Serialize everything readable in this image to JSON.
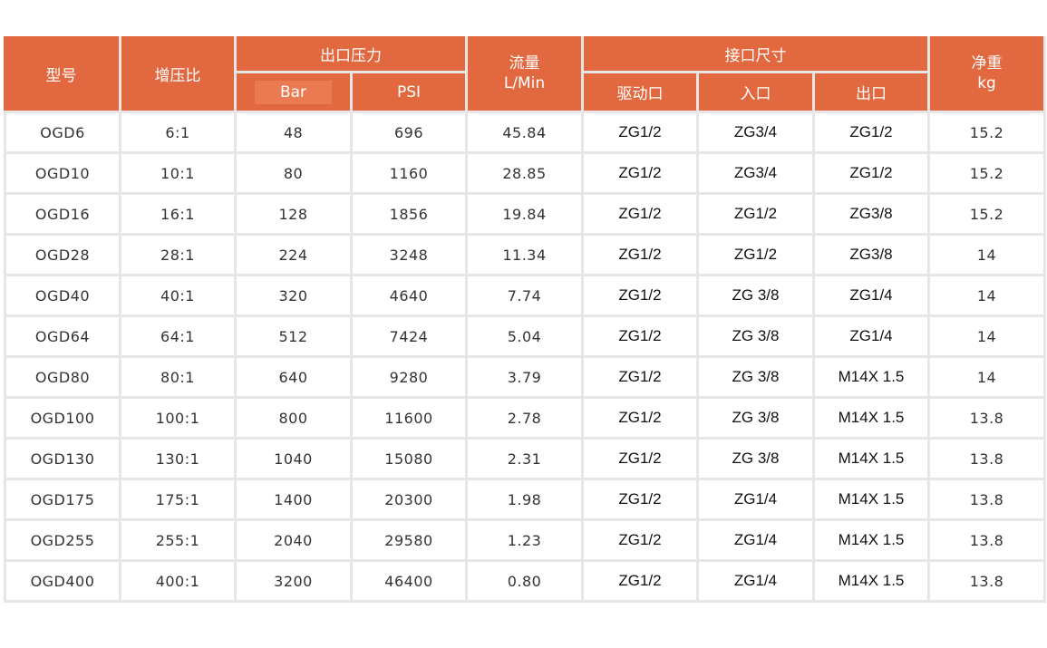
{
  "table": {
    "headers": {
      "model": "型号",
      "ratio": "增压比",
      "outlet_pressure": "出口压力",
      "bar": "Bar",
      "psi": "PSI",
      "flow_line1": "流量",
      "flow_line2": "L/Min",
      "port_size": "接口尺寸",
      "drive_port": "驱动口",
      "inlet": "入口",
      "outlet": "出口",
      "weight_line1": "净重",
      "weight_line2": "kg"
    },
    "rows": [
      {
        "model": "OGD6",
        "ratio": "6:1",
        "bar": "48",
        "psi": "696",
        "flow": "45.84",
        "drive": "ZG1/2",
        "inlet": "ZG3/4",
        "outlet": "ZG1/2",
        "weight": "15.2"
      },
      {
        "model": "OGD10",
        "ratio": "10:1",
        "bar": "80",
        "psi": "1160",
        "flow": "28.85",
        "drive": "ZG1/2",
        "inlet": "ZG3/4",
        "outlet": "ZG1/2",
        "weight": "15.2"
      },
      {
        "model": "OGD16",
        "ratio": "16:1",
        "bar": "128",
        "psi": "1856",
        "flow": "19.84",
        "drive": "ZG1/2",
        "inlet": "ZG1/2",
        "outlet": "ZG3/8",
        "weight": "15.2"
      },
      {
        "model": "OGD28",
        "ratio": "28:1",
        "bar": "224",
        "psi": "3248",
        "flow": "11.34",
        "drive": "ZG1/2",
        "inlet": "ZG1/2",
        "outlet": "ZG3/8",
        "weight": "14"
      },
      {
        "model": "OGD40",
        "ratio": "40:1",
        "bar": "320",
        "psi": "4640",
        "flow": "7.74",
        "drive": "ZG1/2",
        "inlet": "ZG 3/8",
        "outlet": "ZG1/4",
        "weight": "14"
      },
      {
        "model": "OGD64",
        "ratio": "64:1",
        "bar": "512",
        "psi": "7424",
        "flow": "5.04",
        "drive": "ZG1/2",
        "inlet": "ZG 3/8",
        "outlet": "ZG1/4",
        "weight": "14"
      },
      {
        "model": "OGD80",
        "ratio": "80:1",
        "bar": "640",
        "psi": "9280",
        "flow": "3.79",
        "drive": "ZG1/2",
        "inlet": "ZG 3/8",
        "outlet": "M14X 1.5",
        "weight": "14"
      },
      {
        "model": "OGD100",
        "ratio": "100:1",
        "bar": "800",
        "psi": "11600",
        "flow": "2.78",
        "drive": "ZG1/2",
        "inlet": "ZG 3/8",
        "outlet": "M14X 1.5",
        "weight": "13.8"
      },
      {
        "model": "OGD130",
        "ratio": "130:1",
        "bar": "1040",
        "psi": "15080",
        "flow": "2.31",
        "drive": "ZG1/2",
        "inlet": "ZG 3/8",
        "outlet": "M14X 1.5",
        "weight": "13.8"
      },
      {
        "model": "OGD175",
        "ratio": "175:1",
        "bar": "1400",
        "psi": "20300",
        "flow": "1.98",
        "drive": "ZG1/2",
        "inlet": "ZG1/4",
        "outlet": "M14X 1.5",
        "weight": "13.8"
      },
      {
        "model": "OGD255",
        "ratio": "255:1",
        "bar": "2040",
        "psi": "29580",
        "flow": "1.23",
        "drive": "ZG1/2",
        "inlet": "ZG1/4",
        "outlet": "M14X 1.5",
        "weight": "13.8"
      },
      {
        "model": "OGD400",
        "ratio": "400:1",
        "bar": "3200",
        "psi": "46400",
        "flow": "0.80",
        "drive": "ZG1/2",
        "inlet": "ZG1/4",
        "outlet": "M14X 1.5",
        "weight": "13.8"
      }
    ]
  },
  "colors": {
    "header_bg": "#e2693f",
    "header_text": "#ffffff",
    "grid": "#e6e6e6"
  }
}
